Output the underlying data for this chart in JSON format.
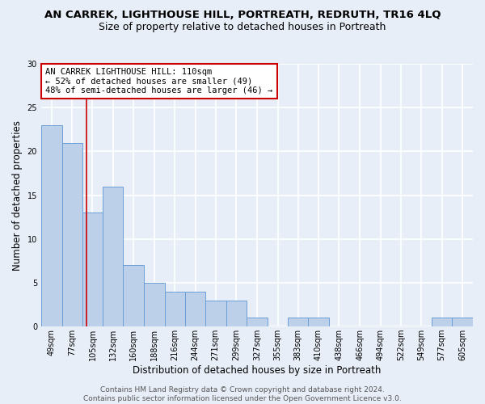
{
  "title": "AN CARREK, LIGHTHOUSE HILL, PORTREATH, REDRUTH, TR16 4LQ",
  "subtitle": "Size of property relative to detached houses in Portreath",
  "xlabel": "Distribution of detached houses by size in Portreath",
  "ylabel": "Number of detached properties",
  "categories": [
    "49sqm",
    "77sqm",
    "105sqm",
    "132sqm",
    "160sqm",
    "188sqm",
    "216sqm",
    "244sqm",
    "271sqm",
    "299sqm",
    "327sqm",
    "355sqm",
    "383sqm",
    "410sqm",
    "438sqm",
    "466sqm",
    "494sqm",
    "522sqm",
    "549sqm",
    "577sqm",
    "605sqm"
  ],
  "bar_values": [
    23,
    21,
    13,
    16,
    7,
    5,
    4,
    4,
    3,
    3,
    1,
    0,
    1,
    1,
    0,
    0,
    0,
    0,
    0,
    1,
    1
  ],
  "bar_color": "#bdd0e9",
  "bar_edge_color": "#6a9fd8",
  "ylim": [
    0,
    30
  ],
  "yticks": [
    0,
    5,
    10,
    15,
    20,
    25,
    30
  ],
  "bin_edges": [
    49,
    77,
    105,
    132,
    160,
    188,
    216,
    244,
    271,
    299,
    327,
    355,
    383,
    410,
    438,
    466,
    494,
    522,
    549,
    577,
    605,
    633
  ],
  "vline_x": 110,
  "annotation_text_line1": "AN CARREK LIGHTHOUSE HILL: 110sqm",
  "annotation_text_line2": "← 52% of detached houses are smaller (49)",
  "annotation_text_line3": "48% of semi-detached houses are larger (46) →",
  "footer_line1": "Contains HM Land Registry data © Crown copyright and database right 2024.",
  "footer_line2": "Contains public sector information licensed under the Open Government Licence v3.0.",
  "background_color": "#e8eef8",
  "grid_color": "#ffffff",
  "annotation_box_facecolor": "#ffffff",
  "annotation_box_edgecolor": "#cc0000",
  "vline_color": "#cc0000",
  "title_fontsize": 9.5,
  "subtitle_fontsize": 9,
  "axis_label_fontsize": 8.5,
  "tick_fontsize": 7,
  "annotation_fontsize": 7.5,
  "footer_fontsize": 6.5
}
